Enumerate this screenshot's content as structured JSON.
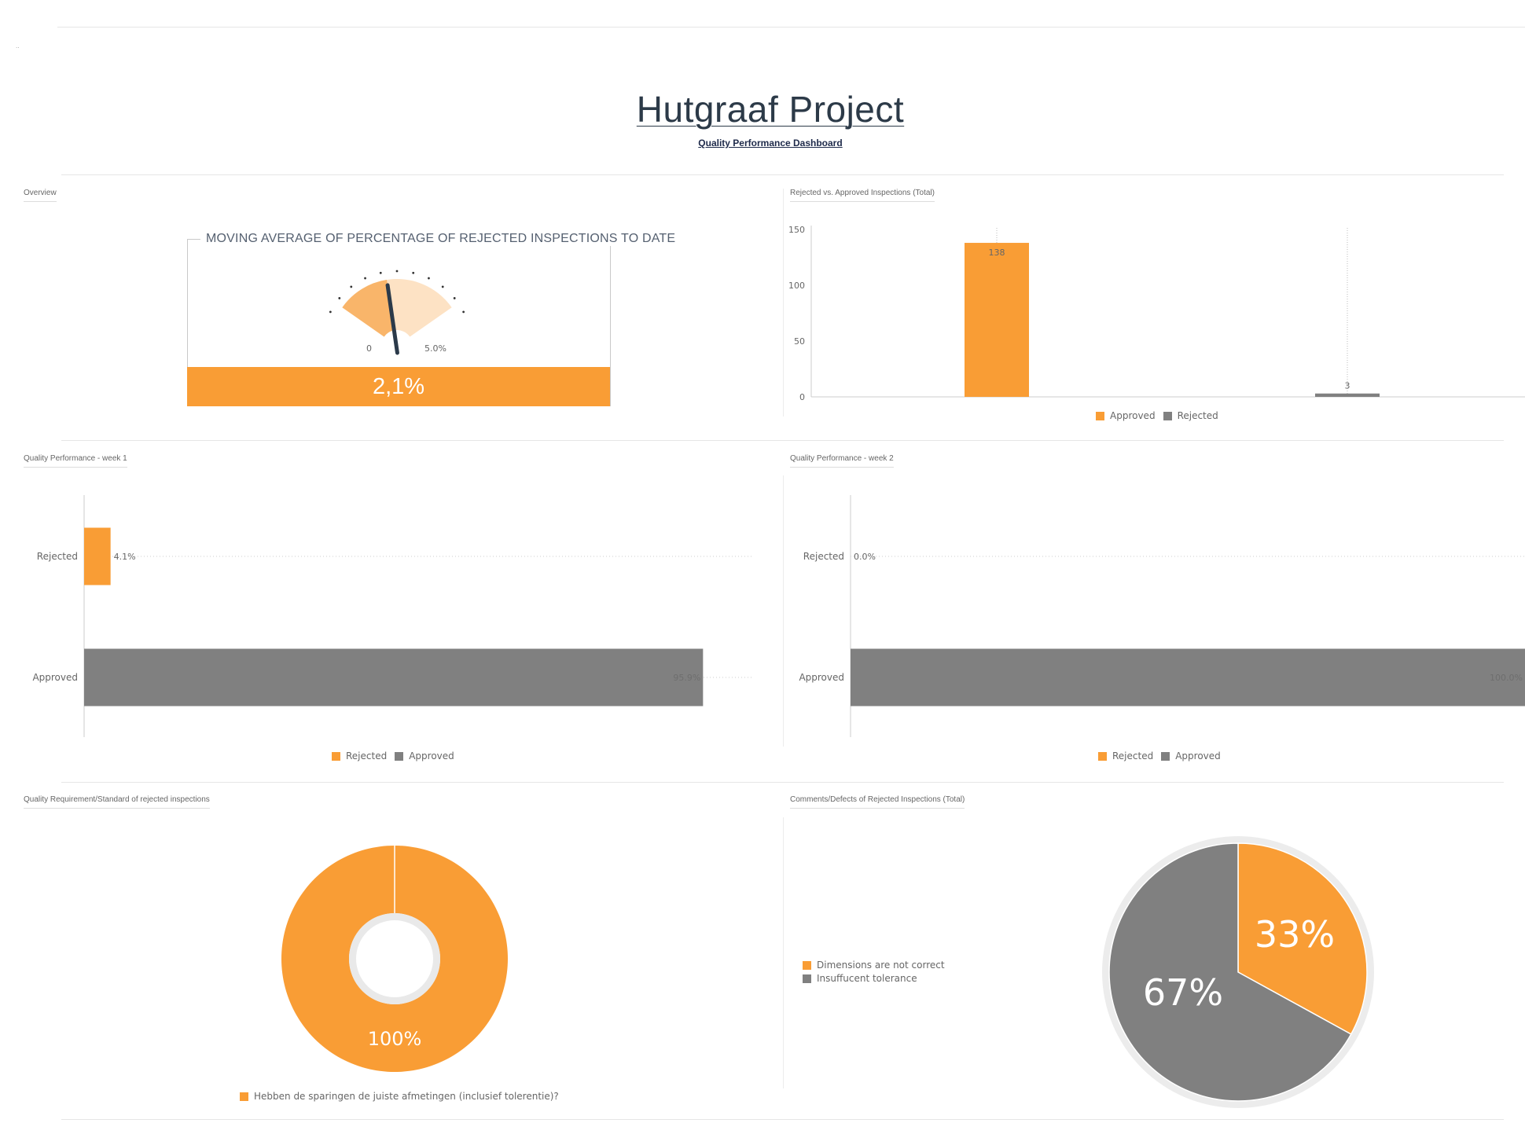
{
  "header": {
    "corner_mark": "‥",
    "title": "Hutgraaf Project",
    "subtitle": "Quality Performance Dashboard"
  },
  "colors": {
    "approved": "#f99d35",
    "rejected": "#808080",
    "orange": "#f99d35",
    "grey": "#808080"
  },
  "overview": {
    "section_label": "Overview",
    "gauge": {
      "title": "MOVING AVERAGE OF PERCENTAGE OF REJECTED INSPECTIONS TO DATE",
      "min_label": "0",
      "max_label": "5.0%",
      "value": 2.1,
      "max": 5.0,
      "value_label": "2,1%"
    }
  },
  "total_chart": {
    "section_label": "Rejected vs. Approved Inspections (Total)",
    "legend": [
      {
        "label": "Approved",
        "color": "#f99d35"
      },
      {
        "label": "Rejected",
        "color": "#808080"
      }
    ]
  },
  "week1": {
    "section_label": "Quality Performance - week 1",
    "legend": [
      {
        "label": "Rejected",
        "color": "#f99d35"
      },
      {
        "label": "Approved",
        "color": "#808080"
      }
    ]
  },
  "week2": {
    "section_label": "Quality Performance - week 2",
    "legend": [
      {
        "label": "Rejected",
        "color": "#f99d35"
      },
      {
        "label": "Approved",
        "color": "#808080"
      }
    ]
  },
  "requirement": {
    "section_label": "Quality Requirement/Standard of rejected inspections",
    "legend": [
      {
        "label": "Hebben de sparingen de juiste afmetingen (inclusief tolerentie)?",
        "color": "#f99d35"
      }
    ]
  },
  "comments": {
    "section_label": "Comments/Defects of Rejected Inspections (Total)",
    "legend": [
      {
        "label": "Dimensions are not correct",
        "color": "#f99d35"
      },
      {
        "label": "Insuffucent tolerance",
        "color": "#808080"
      }
    ]
  },
  "chart_data": [
    {
      "id": "total",
      "type": "bar",
      "title": "Rejected vs. Approved Inspections (Total)",
      "categories": [
        "Approved",
        "Rejected"
      ],
      "values": [
        138,
        3
      ],
      "value_labels": [
        "138",
        "3"
      ],
      "colors": [
        "#f99d35",
        "#808080"
      ],
      "ylim": [
        0,
        150
      ],
      "yticks": [
        0,
        50,
        100,
        150
      ],
      "ytick_labels": [
        "0",
        "50",
        "100",
        "150"
      ],
      "legend": "bottom-center"
    },
    {
      "id": "week1",
      "type": "bar",
      "orientation": "horizontal",
      "title": "Quality Performance - week 1",
      "categories": [
        "Rejected",
        "Approved"
      ],
      "values": [
        4.1,
        95.9
      ],
      "value_labels": [
        "4.1%",
        "95.9%"
      ],
      "colors": [
        "#f99d35",
        "#808080"
      ],
      "xlim": [
        0,
        100
      ],
      "legend": "bottom-center"
    },
    {
      "id": "week2",
      "type": "bar",
      "orientation": "horizontal",
      "title": "Quality Performance - week 2",
      "categories": [
        "Rejected",
        "Approved"
      ],
      "values": [
        0.0,
        100.0
      ],
      "value_labels": [
        "0.0%",
        "100.0%"
      ],
      "colors": [
        "#f99d35",
        "#808080"
      ],
      "xlim": [
        0,
        100
      ],
      "legend": "bottom-center"
    },
    {
      "id": "requirement",
      "type": "pie",
      "variant": "donut",
      "title": "Quality Requirement/Standard of rejected inspections",
      "labels": [
        "Hebben de sparingen de juiste afmetingen (inclusief tolerentie)?"
      ],
      "values": [
        100
      ],
      "value_labels": [
        "100%"
      ],
      "colors": [
        "#f99d35"
      ],
      "legend": "bottom-center"
    },
    {
      "id": "comments",
      "type": "pie",
      "title": "Comments/Defects of Rejected Inspections (Total)",
      "labels": [
        "Dimensions are not correct",
        "Insuffucent tolerance"
      ],
      "values": [
        33,
        67
      ],
      "value_labels": [
        "33%",
        "67%"
      ],
      "colors": [
        "#f99d35",
        "#808080"
      ],
      "legend": "left"
    }
  ]
}
